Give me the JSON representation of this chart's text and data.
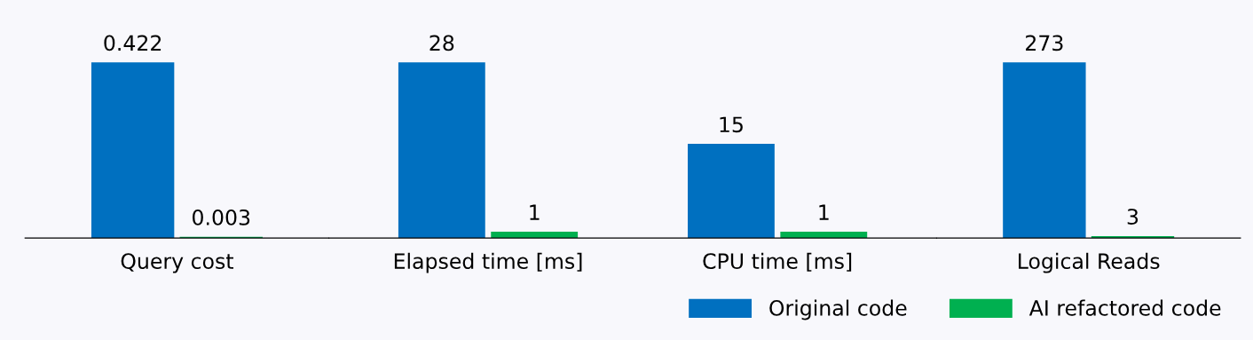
{
  "chart_data": [
    {
      "type": "bar",
      "categories": [
        "Query cost"
      ],
      "data_labels": true,
      "series": [
        {
          "color": "#0070c0",
          "values": [
            0.422
          ]
        },
        {
          "color": "#00b050",
          "values": [
            0.003
          ]
        }
      ]
    },
    {
      "type": "bar",
      "categories": [
        "Elapsed time [ms]",
        "CPU time [ms]"
      ],
      "data_labels": true,
      "series": [
        {
          "color": "#0070c0",
          "values": [
            28,
            15
          ]
        },
        {
          "color": "#00b050",
          "values": [
            1,
            1
          ]
        }
      ]
    },
    {
      "type": "bar",
      "categories": [
        "Logical Reads"
      ],
      "data_labels": true,
      "legend": "bottom left",
      "series": [
        {
          "name": "Original code",
          "color": "#0070c0",
          "values": [
            273
          ]
        },
        {
          "name": "AI refactored code",
          "color": "#00b050",
          "values": [
            3
          ]
        }
      ]
    }
  ]
}
